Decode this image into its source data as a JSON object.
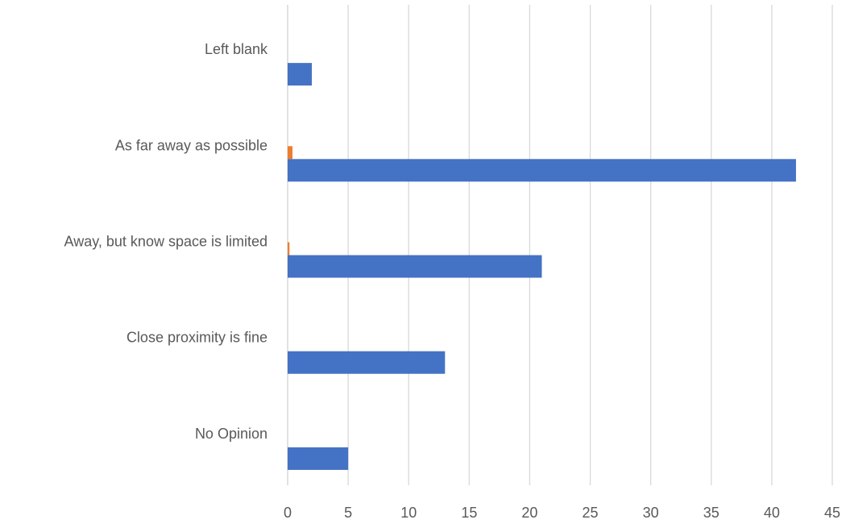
{
  "chart_data": {
    "type": "bar",
    "orientation": "horizontal",
    "title": "",
    "xlabel": "",
    "ylabel": "",
    "categories": [
      "Left blank",
      "As far away as possible",
      "Away, but know space is limited",
      "Close proximity is fine",
      "No Opinion"
    ],
    "series": [
      {
        "color": "#4472C4",
        "values": [
          2,
          42,
          21,
          13,
          5
        ]
      },
      {
        "color": "#ED7D31",
        "values": [
          0,
          0.4,
          0.15,
          0,
          0
        ]
      }
    ],
    "xlim": [
      0,
      45
    ],
    "xticks": [
      0,
      5,
      10,
      15,
      20,
      25,
      30,
      35,
      40,
      45
    ],
    "grid": "vertical",
    "legend": "none"
  }
}
